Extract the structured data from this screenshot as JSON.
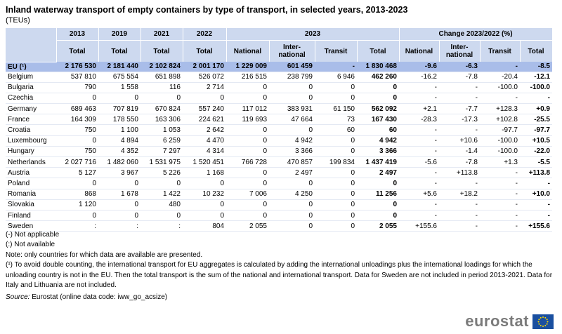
{
  "title": "Inland waterway transport of empty containers by type of transport, in selected years, 2013-2023",
  "unit": "(TEUs)",
  "header": {
    "years": [
      "2013",
      "2019",
      "2021",
      "2022",
      "2023",
      "Change 2023/2022 (%)"
    ],
    "sub": [
      "Total",
      "Total",
      "Total",
      "Total",
      "National",
      "Inter-\nnational",
      "Transit",
      "Total",
      "National",
      "Inter-\nnational",
      "Transit",
      "Total"
    ]
  },
  "table": {
    "rows": [
      [
        "EU (¹)",
        "2 176 530",
        "2 181 440",
        "2 102 824",
        "2 001 170",
        "1 229 009",
        "601 459",
        "-",
        "1 830 468",
        "-9.6",
        "-6.3",
        "-",
        "-8.5"
      ],
      [
        "Belgium",
        "537 810",
        "675 554",
        "651 898",
        "526 072",
        "216 515",
        "238 799",
        "6 946",
        "462 260",
        "-16.2",
        "-7.8",
        "-20.4",
        "-12.1"
      ],
      [
        "Bulgaria",
        "790",
        "1 558",
        "116",
        "2 714",
        "0",
        "0",
        "0",
        "0",
        "-",
        "-",
        "-100.0",
        "-100.0"
      ],
      [
        "Czechia",
        "0",
        "0",
        "0",
        "0",
        "0",
        "0",
        "0",
        "0",
        "-",
        "-",
        "-",
        "-"
      ],
      [
        "Germany",
        "689 463",
        "707 819",
        "670 824",
        "557 240",
        "117 012",
        "383 931",
        "61 150",
        "562 092",
        "+2.1",
        "-7.7",
        "+128.3",
        "+0.9"
      ],
      [
        "France",
        "164 309",
        "178 550",
        "163 306",
        "224 621",
        "119 693",
        "47 664",
        "73",
        "167 430",
        "-28.3",
        "-17.3",
        "+102.8",
        "-25.5"
      ],
      [
        "Croatia",
        "750",
        "1 100",
        "1 053",
        "2 642",
        "0",
        "0",
        "60",
        "60",
        "-",
        "-",
        "-97.7",
        "-97.7"
      ],
      [
        "Luxembourg",
        "0",
        "4 894",
        "6 259",
        "4 470",
        "0",
        "4 942",
        "0",
        "4 942",
        "-",
        "+10.6",
        "-100.0",
        "+10.5"
      ],
      [
        "Hungary",
        "750",
        "4 352",
        "7 297",
        "4 314",
        "0",
        "3 366",
        "0",
        "3 366",
        "-",
        "-1.4",
        "-100.0",
        "-22.0"
      ],
      [
        "Netherlands",
        "2 027 716",
        "1 482 060",
        "1 531 975",
        "1 520 451",
        "766 728",
        "470 857",
        "199 834",
        "1 437 419",
        "-5.6",
        "-7.8",
        "+1.3",
        "-5.5"
      ],
      [
        "Austria",
        "5 127",
        "3 967",
        "5 226",
        "1 168",
        "0",
        "2 497",
        "0",
        "2 497",
        "-",
        "+113.8",
        "-",
        "+113.8"
      ],
      [
        "Poland",
        "0",
        "0",
        "0",
        "0",
        "0",
        "0",
        "0",
        "0",
        "-",
        "-",
        "-",
        "-"
      ],
      [
        "Romania",
        "868",
        "1 678",
        "1 422",
        "10 232",
        "7 006",
        "4 250",
        "0",
        "11 256",
        "+5.6",
        "+18.2",
        "-",
        "+10.0"
      ],
      [
        "Slovakia",
        "1 120",
        "0",
        "480",
        "0",
        "0",
        "0",
        "0",
        "0",
        "-",
        "-",
        "-",
        "-"
      ],
      [
        "Finland",
        "0",
        "0",
        "0",
        "0",
        "0",
        "0",
        "0",
        "0",
        "-",
        "-",
        "-",
        "-"
      ],
      [
        "Sweden",
        ":",
        ":",
        ":",
        "804",
        "2 055",
        "0",
        "0",
        "2 055",
        "+155.6",
        "-",
        "-",
        "+155.6"
      ]
    ]
  },
  "notes": [
    "(-) Not applicable",
    "(:) Not available",
    "Note: only countries for which data are available are presented.",
    "(¹) To avoid double counting, the international transport for EU aggregates is calculated by adding the international unloadings plus the international loadings for which the unloading country is not in the EU. Then the total transport is the sum of the national and international transport. Data for Sweden are not included in period 2013-2021. Data for Italy and Lithuania are not included."
  ],
  "source": {
    "label": "Source:",
    "text": " Eurostat (online data code: iww_go_acsize)"
  },
  "logo": "eurostat"
}
